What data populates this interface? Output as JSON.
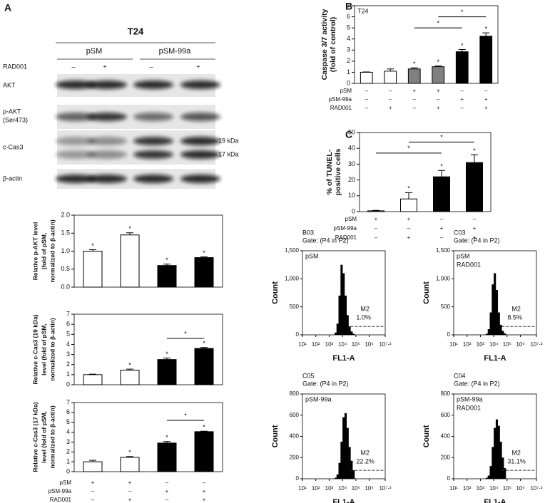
{
  "panels": [
    "A",
    "B",
    "C"
  ],
  "blot": {
    "title": "T24",
    "groups": [
      "pSM",
      "pSM-99a"
    ],
    "treatment": {
      "name": "RAD001",
      "marks": [
        "–",
        "+",
        "–",
        "+"
      ]
    },
    "bands": [
      {
        "name": "AKT"
      },
      {
        "name": "p-AKT",
        "sub": "(Ser473)"
      },
      {
        "name": "c-Cas3",
        "sizes": [
          "19 kDa",
          "17 kDa"
        ]
      },
      {
        "name": "β-actin"
      }
    ]
  },
  "chart_data": [
    {
      "type": "bar",
      "ylabel": [
        "Relative p-AKT level",
        "(fold of pSM,",
        "normalized to β-actin)"
      ],
      "values": [
        1.0,
        1.45,
        0.6,
        0.82
      ],
      "errors": [
        0.04,
        0.06,
        0.04,
        0.02
      ],
      "colors": [
        "#ffffff",
        "#ffffff",
        "#000000",
        "#000000"
      ],
      "ylim": [
        0,
        2
      ],
      "yticks": [
        {
          "value": 0,
          "label": "0.0"
        },
        {
          "value": 0.5,
          "label": "0.5"
        },
        {
          "value": 1,
          "label": "1.0"
        },
        {
          "value": 1.5,
          "label": "1.5"
        },
        {
          "value": 2,
          "label": "2.0"
        }
      ],
      "stars": [
        {
          "bar": 0,
          "text": "*"
        },
        {
          "bar": 1,
          "text": "*"
        },
        {
          "bar": 2,
          "text": "*"
        },
        {
          "bar": 3,
          "text": "*"
        }
      ]
    },
    {
      "type": "bar",
      "ylabel": [
        "Relative c-Cas3 (19 kDa)",
        "level (fold of pSM,",
        "normalized to β-actin)"
      ],
      "values": [
        1.0,
        1.45,
        2.5,
        3.6
      ],
      "errors": [
        0.05,
        0.1,
        0.15,
        0.1
      ],
      "colors": [
        "#ffffff",
        "#ffffff",
        "#000000",
        "#000000"
      ],
      "ylim": [
        0,
        7
      ],
      "yticks": [
        0,
        1,
        2,
        3,
        4,
        5,
        6,
        7
      ],
      "stars": [
        {
          "bar": 1,
          "text": "*"
        },
        {
          "bar": 2,
          "text": "*"
        },
        {
          "bar": 3,
          "text": "*"
        }
      ],
      "brackets": [
        {
          "from": 2,
          "to": 3,
          "level": 4.6,
          "text": "*"
        }
      ]
    },
    {
      "type": "bar",
      "ylabel": [
        "Relative c-Cas3 (17 kDa)",
        "level (fold of pSM,",
        "normalized to β-actin)"
      ],
      "values": [
        1.0,
        1.45,
        2.9,
        4.05
      ],
      "errors": [
        0.15,
        0.08,
        0.15,
        0.05
      ],
      "colors": [
        "#ffffff",
        "#ffffff",
        "#000000",
        "#000000"
      ],
      "ylim": [
        0,
        7
      ],
      "yticks": [
        0,
        1,
        2,
        3,
        4,
        5,
        6,
        7
      ],
      "stars": [
        {
          "bar": 1,
          "text": "*"
        },
        {
          "bar": 2,
          "text": "*"
        },
        {
          "bar": 3,
          "text": "*"
        }
      ],
      "brackets": [
        {
          "from": 2,
          "to": 3,
          "level": 5.2,
          "text": "*"
        }
      ],
      "conditions": [
        {
          "name": "pSM",
          "marks": [
            "+",
            "+",
            "–",
            "–"
          ]
        },
        {
          "name": "pSM-99a",
          "marks": [
            "–",
            "–",
            "+",
            "+"
          ]
        },
        {
          "name": "RAD001",
          "marks": [
            "–",
            "+",
            "–",
            "+"
          ]
        }
      ]
    },
    {
      "type": "bar",
      "label": "T24",
      "ylabel": [
        "Caspase 3/7 activity",
        "(fold of control)"
      ],
      "values": [
        1.0,
        1.1,
        1.3,
        1.5,
        2.85,
        4.25
      ],
      "errors": [
        0.03,
        0.2,
        0.1,
        0.07,
        0.2,
        0.3
      ],
      "colors": [
        "#ffffff",
        "#ffffff",
        "#808080",
        "#808080",
        "#000000",
        "#000000"
      ],
      "ylim": [
        0,
        7
      ],
      "yticks": [
        0,
        1,
        2,
        3,
        4,
        5,
        6,
        7
      ],
      "stars": [
        {
          "bar": 2,
          "text": "*"
        },
        {
          "bar": 3,
          "text": "*"
        },
        {
          "bar": 4,
          "text": "*"
        },
        {
          "bar": 5,
          "text": "*"
        }
      ],
      "brackets": [
        {
          "from": 2,
          "to": 4,
          "level": 5.0,
          "text": "*"
        },
        {
          "from": 3,
          "to": 5,
          "level": 6.0,
          "text": "*"
        }
      ],
      "conditions": [
        {
          "name": "pSM",
          "marks": [
            "–",
            "–",
            "+",
            "+",
            "–",
            "–"
          ]
        },
        {
          "name": "pSM-99a",
          "marks": [
            "–",
            "–",
            "–",
            "–",
            "+",
            "+"
          ]
        },
        {
          "name": "RAD001",
          "marks": [
            "–",
            "+",
            "–",
            "+",
            "–",
            "+"
          ]
        }
      ]
    },
    {
      "type": "bar",
      "ylabel": [
        "% of TUNEL-",
        "positive cells"
      ],
      "values": [
        0.5,
        8,
        22,
        31
      ],
      "errors": [
        0.3,
        4,
        4,
        5
      ],
      "colors": [
        "#ffffff",
        "#ffffff",
        "#000000",
        "#000000"
      ],
      "ylim": [
        0,
        50
      ],
      "yticks": [
        0,
        10,
        20,
        30,
        40,
        50
      ],
      "stars": [
        {
          "bar": 1,
          "text": "*"
        },
        {
          "bar": 2,
          "text": "*"
        },
        {
          "bar": 3,
          "text": "*"
        }
      ],
      "brackets": [
        {
          "from": 0,
          "to": 2,
          "level": 37,
          "text": "*"
        },
        {
          "from": 1,
          "to": 3,
          "level": 44,
          "text": "*"
        }
      ],
      "conditions": [
        {
          "name": "pSM",
          "marks": [
            "+",
            "+",
            "–",
            "–"
          ]
        },
        {
          "name": "pSM-99a",
          "marks": [
            "–",
            "–",
            "+",
            "+"
          ]
        },
        {
          "name": "RAD001",
          "marks": [
            "–",
            "+",
            "–",
            "+"
          ]
        }
      ]
    },
    {
      "type": "flow",
      "title": "B03",
      "gate_text": "Gate: (P4 in P2)",
      "sample": [
        "pSM"
      ],
      "xlabel": "FL1-A",
      "ylabel": "Count",
      "xscale": "log",
      "xlim": [
        10,
        15848932
      ],
      "xticks": [
        {
          "value": 10,
          "label": "10¹"
        },
        {
          "value": 100,
          "label": "10²"
        },
        {
          "value": 1000,
          "label": "10³"
        },
        {
          "value": 10000,
          "label": "10⁴"
        },
        {
          "value": 100000,
          "label": "10⁵"
        },
        {
          "value": 1000000,
          "label": "10⁶"
        },
        {
          "value": 15848932,
          "label": "10⁷·²"
        }
      ],
      "ylim": [
        0,
        1500
      ],
      "yticks": [
        0,
        500,
        {
          "value": 1000,
          "label": "1,000"
        },
        {
          "value": 1500,
          "label": "1,500"
        }
      ],
      "bins": [
        2512,
        3548,
        5012,
        7079,
        10000,
        14125,
        19953,
        28184,
        39811,
        56234,
        79433
      ],
      "counts": [
        40,
        200,
        700,
        1250,
        1100,
        700,
        350,
        150,
        60,
        20
      ],
      "gate": {
        "label": "M2",
        "percent": "1.0%",
        "start": 39811,
        "level": 150
      }
    },
    {
      "type": "flow",
      "title": "C03",
      "gate_text": "Gate: (P4 in P2)",
      "sample": [
        "pSM",
        "RAD001"
      ],
      "xlabel": "FL1-A",
      "ylabel": "Count",
      "xscale": "log",
      "xlim": [
        10,
        15848932
      ],
      "xticks": [
        {
          "value": 10,
          "label": "10¹"
        },
        {
          "value": 100,
          "label": "10²"
        },
        {
          "value": 1000,
          "label": "10³"
        },
        {
          "value": 10000,
          "label": "10⁴"
        },
        {
          "value": 100000,
          "label": "10⁵"
        },
        {
          "value": 1000000,
          "label": "10⁶"
        },
        {
          "value": 15848932,
          "label": "10⁷·²"
        }
      ],
      "ylim": [
        0,
        1500
      ],
      "yticks": [
        0,
        500,
        {
          "value": 1000,
          "label": "1,000"
        },
        {
          "value": 1500,
          "label": "1,500"
        }
      ],
      "bins": [
        2512,
        3548,
        5012,
        7079,
        10000,
        14125,
        19953,
        28184,
        39811,
        56234,
        79433
      ],
      "counts": [
        20,
        100,
        400,
        900,
        1100,
        800,
        400,
        180,
        70,
        25
      ],
      "gate": {
        "label": "M2",
        "percent": "8.5%",
        "start": 39811,
        "level": 150
      }
    },
    {
      "type": "flow",
      "title": "C05",
      "gate_text": "Gate: (P4 in P2)",
      "sample": [
        "pSM-99a"
      ],
      "xlabel": "FL1-A",
      "ylabel": "Count",
      "xscale": "log",
      "xlim": [
        10,
        15848932
      ],
      "xticks": [
        {
          "value": 10,
          "label": "10¹"
        },
        {
          "value": 100,
          "label": "10²"
        },
        {
          "value": 1000,
          "label": "10³"
        },
        {
          "value": 10000,
          "label": "10⁴"
        },
        {
          "value": 100000,
          "label": "10⁵"
        },
        {
          "value": 1000000,
          "label": "10⁶"
        },
        {
          "value": 15848932,
          "label": "10⁷·²"
        }
      ],
      "ylim": [
        0,
        800
      ],
      "yticks": [
        0,
        200,
        400,
        600,
        800
      ],
      "bins": [
        2512,
        3548,
        5012,
        7079,
        10000,
        14125,
        19953,
        28184,
        39811,
        56234,
        79433
      ],
      "counts": [
        10,
        40,
        150,
        350,
        580,
        620,
        480,
        300,
        170,
        80
      ],
      "gate": {
        "label": "M2",
        "percent": "22.2%",
        "start": 39811,
        "level": 80
      }
    },
    {
      "type": "flow",
      "title": "C04",
      "gate_text": "Gate: (P4 in P2)",
      "sample": [
        "pSM-99a",
        "RAD001"
      ],
      "xlabel": "FL1-A",
      "ylabel": "Count",
      "xscale": "log",
      "xlim": [
        10,
        15848932
      ],
      "xticks": [
        {
          "value": 10,
          "label": "10¹"
        },
        {
          "value": 100,
          "label": "10²"
        },
        {
          "value": 1000,
          "label": "10³"
        },
        {
          "value": 10000,
          "label": "10⁴"
        },
        {
          "value": 100000,
          "label": "10⁵"
        },
        {
          "value": 1000000,
          "label": "10⁶"
        },
        {
          "value": 15848932,
          "label": "10⁷·²"
        }
      ],
      "ylim": [
        0,
        800
      ],
      "yticks": [
        0,
        200,
        400,
        600,
        800
      ],
      "bins": [
        2512,
        3548,
        5012,
        7079,
        10000,
        14125,
        19953,
        28184,
        39811,
        56234,
        79433
      ],
      "counts": [
        10,
        30,
        120,
        300,
        480,
        560,
        500,
        350,
        200,
        100
      ],
      "gate": {
        "label": "M2",
        "percent": "31.1%",
        "start": 39811,
        "level": 80
      }
    }
  ]
}
